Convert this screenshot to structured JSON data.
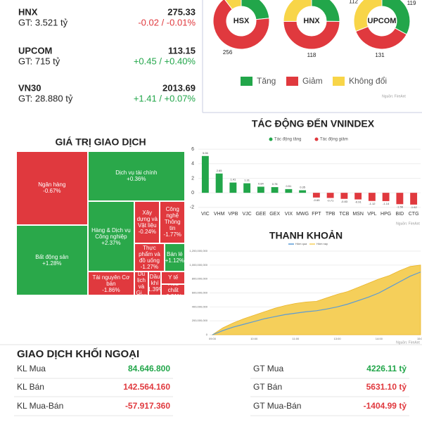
{
  "indices": [
    {
      "name": "HNX",
      "value": "275.33",
      "gt": "GT: 3.521 tỷ",
      "change": "-0.02 / -0.01%",
      "color": "#e0393e"
    },
    {
      "name": "UPCOM",
      "value": "113.15",
      "gt": "GT: 715 tỷ",
      "change": "+0.45 / +0.40%",
      "color": "#22a64a"
    },
    {
      "name": "VN30",
      "value": "2013.69",
      "gt": "GT: 28.880 tỷ",
      "change": "+1.41 / +0.07%",
      "color": "#22a64a"
    }
  ],
  "pie_legend": {
    "categories": [
      "Tăng",
      "Giảm",
      "Không đổi"
    ],
    "colors": [
      "#22a64a",
      "#e0393e",
      "#f8d548"
    ],
    "source": "Nguồn: FireAnt"
  },
  "chart_data": [
    {
      "type": "pie",
      "title": "HSX",
      "values": [
        90,
        256,
        40
      ]
    },
    {
      "type": "pie",
      "title": "HNX",
      "values": [
        60,
        118,
        60
      ]
    },
    {
      "type": "pie",
      "title": "UPCOM",
      "values": [
        119,
        131,
        112
      ]
    },
    {
      "type": "bar",
      "title": "TÁC ĐỘNG ĐẾN VNINDEX",
      "legend": [
        {
          "name": "Tác động tăng",
          "color": "#22a64a"
        },
        {
          "name": "Tác động giảm",
          "color": "#e0393e"
        }
      ],
      "categories": [
        "VIC",
        "VHM",
        "VPB",
        "VJC",
        "GEE",
        "GEX",
        "VIX",
        "MWG",
        "FPT",
        "TPB",
        "TCB",
        "MSN",
        "VPL",
        "HPG",
        "BID",
        "CTG"
      ],
      "values": [
        5.06,
        2.65,
        1.41,
        1.31,
        0.84,
        0.78,
        0.51,
        0.35,
        -0.65,
        -0.71,
        -0.83,
        -0.91,
        -1.12,
        -1.14,
        -1.56,
        -1.62
      ],
      "ylim": [
        -2.5,
        6.2
      ],
      "yticks": [
        -2,
        0,
        2,
        4,
        6
      ],
      "grid": true,
      "source": "Nguồn: FireAnt"
    },
    {
      "type": "treemap",
      "title": "GIÁ TRỊ GIAO DỊCH",
      "up_color": "#2aa84a",
      "down_color": "#e0393e",
      "categories": [
        "Ngân hàng",
        "Bất động sản",
        "Dịch vụ tài chính",
        "Hàng & Dịch vụ Công nghiệp",
        "Tài nguyên Cơ bản",
        "Xây dựng và Vật liệu",
        "Công nghệ Thông tin",
        "Thực phẩm và đồ uống",
        "Bán lẻ",
        "Du lịch và Gi...",
        "Dầu khí",
        "Y tế",
        "Hóa chất"
      ],
      "values": [
        5500,
        5250,
        5050,
        3450,
        1150,
        1125,
        1100,
        875,
        600,
        350,
        330,
        325,
        270
      ],
      "changes": [
        -0.67,
        1.28,
        0.36,
        2.37,
        -1.86,
        -0.24,
        -1.77,
        -1.27,
        1.12,
        -0.5,
        -1.39,
        -0.3,
        -0.81
      ],
      "change_labels": [
        "-0.67%",
        "+1.28%",
        "+0.36%",
        "+2.37%",
        "-1.86%",
        "-0.24%",
        "-1.77%",
        "-1.27%",
        "+1.12%",
        null,
        "-1.39%",
        null,
        "-0.81%"
      ]
    },
    {
      "type": "line",
      "title": "THANH KHOẢN",
      "x": [
        "09:00",
        null,
        null,
        null,
        "10:00",
        null,
        null,
        null,
        "11:00",
        null,
        null,
        null,
        "13:00",
        null,
        null,
        null,
        "14:00",
        null,
        null,
        null,
        "15:00"
      ],
      "series": [
        {
          "name": "Hôm qua",
          "color": "#5b9bd5",
          "values": [
            0,
            60000000,
            110000000,
            150000000,
            190000000,
            230000000,
            260000000,
            290000000,
            310000000,
            330000000,
            345000000,
            370000000,
            400000000,
            440000000,
            490000000,
            540000000,
            600000000,
            680000000,
            760000000,
            840000000,
            900000000
          ]
        },
        {
          "name": "Hôm nay",
          "color": "#f5cf5a",
          "fill": true,
          "values": [
            0,
            100000000,
            170000000,
            230000000,
            280000000,
            330000000,
            380000000,
            420000000,
            450000000,
            470000000,
            480000000,
            530000000,
            580000000,
            620000000,
            680000000,
            740000000,
            800000000,
            850000000,
            920000000,
            980000000,
            1000000000
          ]
        }
      ],
      "ylim": [
        0,
        1200000000
      ],
      "yticks": [
        0,
        {
          "value": 200000000,
          "label": "200,000,000"
        },
        {
          "value": 400000000,
          "label": "400,000,000"
        },
        {
          "value": 600000000,
          "label": "600,000,000"
        },
        {
          "value": 800000000,
          "label": "800,000,000"
        },
        {
          "value": 1000000000,
          "label": "1,000,000,000"
        },
        {
          "value": 1200000000,
          "label": "1,200,000,000"
        }
      ],
      "grid": true,
      "source": "Nguồn: FireAnt"
    }
  ],
  "foreign": {
    "title": "GIAO DỊCH KHỐI NGOẠI",
    "left": [
      {
        "label": "KL Mua",
        "value": "84.646.800",
        "color": "#22a64a"
      },
      {
        "label": "KL Bán",
        "value": "142.564.160",
        "color": "#e0393e"
      },
      {
        "label": "KL Mua-Bán",
        "value": "-57.917.360",
        "color": "#e0393e"
      }
    ],
    "right": [
      {
        "label": "GT Mua",
        "value": "4226.11 tỷ",
        "color": "#22a64a"
      },
      {
        "label": "GT Bán",
        "value": "5631.10 tỷ",
        "color": "#e0393e"
      },
      {
        "label": "GT Mua-Bán",
        "value": "-1404.99 tỷ",
        "color": "#e0393e"
      }
    ]
  }
}
